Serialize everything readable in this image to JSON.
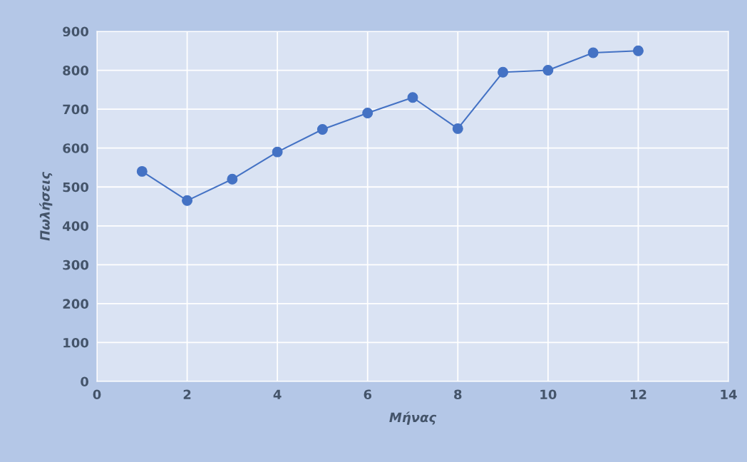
{
  "chart_data": {
    "type": "line",
    "xlabel": "Μήνας",
    "ylabel": "Πωλήσεις",
    "x": [
      1,
      2,
      3,
      4,
      5,
      6,
      7,
      8,
      9,
      10,
      11,
      12
    ],
    "series": [
      {
        "color": "#4472c4",
        "values": [
          540,
          465,
          520,
          590,
          648,
          690,
          730,
          650,
          795,
          800,
          845,
          850
        ]
      }
    ],
    "xlim": [
      0,
      14
    ],
    "xticks": [
      0,
      2,
      4,
      6,
      8,
      10,
      12,
      14
    ],
    "ylim": [
      0,
      900
    ],
    "yticks": [
      0,
      100,
      200,
      300,
      400,
      500,
      600,
      700,
      800,
      900
    ],
    "grid": true,
    "marker": "circle",
    "line_style": "solid"
  }
}
